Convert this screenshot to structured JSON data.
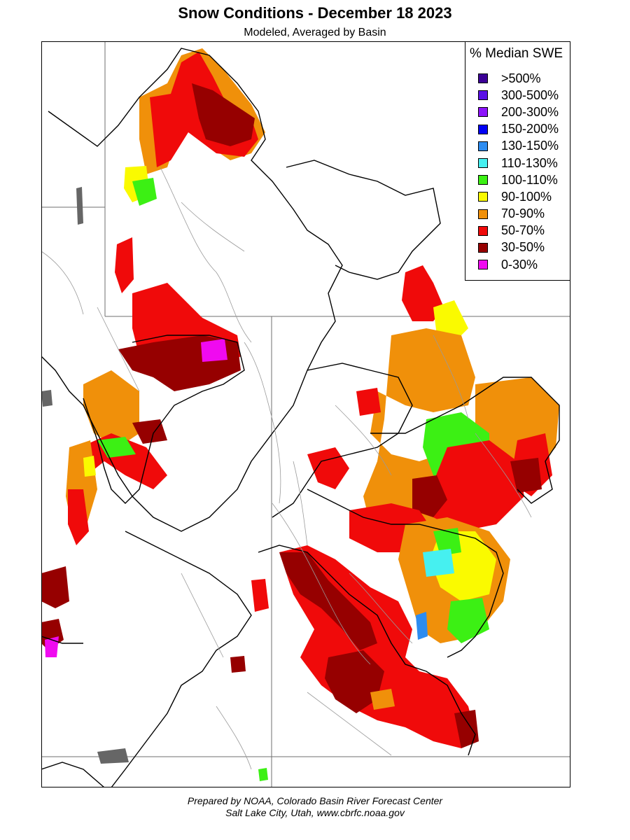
{
  "title": "Snow Conditions - December 18 2023",
  "subtitle": "Modeled, Averaged by Basin",
  "legend": {
    "title": "% Median SWE",
    "items": [
      {
        "label": ">500%",
        "color": "#3b0096"
      },
      {
        "label": "300-500%",
        "color": "#5a0fe6"
      },
      {
        "label": "200-300%",
        "color": "#8c14fa"
      },
      {
        "label": "150-200%",
        "color": "#0000f5"
      },
      {
        "label": "130-150%",
        "color": "#2d8cf0"
      },
      {
        "label": "110-130%",
        "color": "#46f0f0"
      },
      {
        "label": "100-110%",
        "color": "#3cf014"
      },
      {
        "label": "90-100%",
        "color": "#fafa00"
      },
      {
        "label": "70-90%",
        "color": "#f0900a"
      },
      {
        "label": "50-70%",
        "color": "#f00a0a"
      },
      {
        "label": "30-50%",
        "color": "#960000"
      },
      {
        "label": "0-30%",
        "color": "#f00af0"
      }
    ]
  },
  "footer": {
    "line1": "Prepared by NOAA, Colorado Basin River Forecast Center",
    "line2": "Salt Lake City, Utah, www.cbrfc.noaa.gov"
  }
}
